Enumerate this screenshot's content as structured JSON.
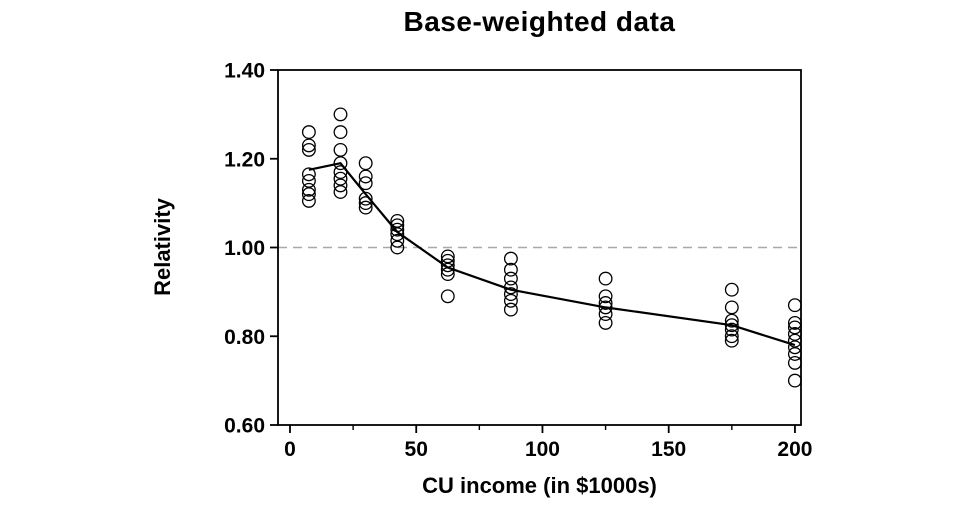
{
  "chart_data": {
    "type": "scatter",
    "title": "Base-weighted data",
    "xlabel": "CU income (in $1000s)",
    "ylabel": "Relativity",
    "xlim": [
      -4.75,
      202.4
    ],
    "ylim": [
      0.6,
      1.4
    ],
    "grid": false,
    "x_ticks": [
      {
        "value": 0,
        "label": "0"
      },
      {
        "value": 50,
        "label": "50"
      },
      {
        "value": 100,
        "label": "100"
      },
      {
        "value": 150,
        "label": "150"
      },
      {
        "value": 200,
        "label": "200"
      }
    ],
    "x_minor_ticks": [
      25,
      75,
      125,
      175
    ],
    "y_ticks": [
      {
        "value": 1.4,
        "label": "1.40"
      },
      {
        "value": 1.2,
        "label": "1.20"
      },
      {
        "value": 1.0,
        "label": "1.00"
      },
      {
        "value": 0.8,
        "label": "0.80"
      },
      {
        "value": 0.6,
        "label": "0.60"
      }
    ],
    "reference_line": {
      "y": 1.0,
      "style": "dashed",
      "color": "#a8a8a8"
    },
    "marker": {
      "shape": "open-circle",
      "radius": 6.3,
      "stroke": "#000000",
      "fill": "none"
    },
    "series": [
      {
        "name": "relativity-observations",
        "groups": [
          {
            "x": 7.5,
            "values": [
              1.26,
              1.23,
              1.22,
              1.165,
              1.15,
              1.13,
              1.12,
              1.105
            ]
          },
          {
            "x": 20,
            "values": [
              1.3,
              1.26,
              1.22,
              1.19,
              1.17,
              1.155,
              1.14,
              1.125
            ]
          },
          {
            "x": 30,
            "values": [
              1.19,
              1.16,
              1.145,
              1.11,
              1.1,
              1.09
            ]
          },
          {
            "x": 42.5,
            "values": [
              1.06,
              1.05,
              1.04,
              1.03,
              1.015,
              1.0
            ]
          },
          {
            "x": 62.5,
            "values": [
              0.98,
              0.97,
              0.96,
              0.95,
              0.94,
              0.89
            ]
          },
          {
            "x": 87.5,
            "values": [
              0.975,
              0.95,
              0.93,
              0.91,
              0.895,
              0.88,
              0.86
            ]
          },
          {
            "x": 125,
            "values": [
              0.93,
              0.89,
              0.875,
              0.865,
              0.85,
              0.83
            ]
          },
          {
            "x": 175,
            "values": [
              0.905,
              0.865,
              0.835,
              0.825,
              0.815,
              0.8,
              0.79
            ]
          },
          {
            "x": 200,
            "values": [
              0.87,
              0.83,
              0.82,
              0.805,
              0.79,
              0.775,
              0.76,
              0.74,
              0.7
            ]
          }
        ]
      }
    ],
    "trend_line": {
      "name": "mean-relativity-line",
      "color": "#000000",
      "x": [
        7.5,
        20,
        30,
        42.5,
        62.5,
        87.5,
        125,
        175,
        200
      ],
      "y": [
        1.175,
        1.19,
        1.12,
        1.035,
        0.955,
        0.905,
        0.865,
        0.825,
        0.78
      ]
    },
    "frame_color": "#000000"
  }
}
